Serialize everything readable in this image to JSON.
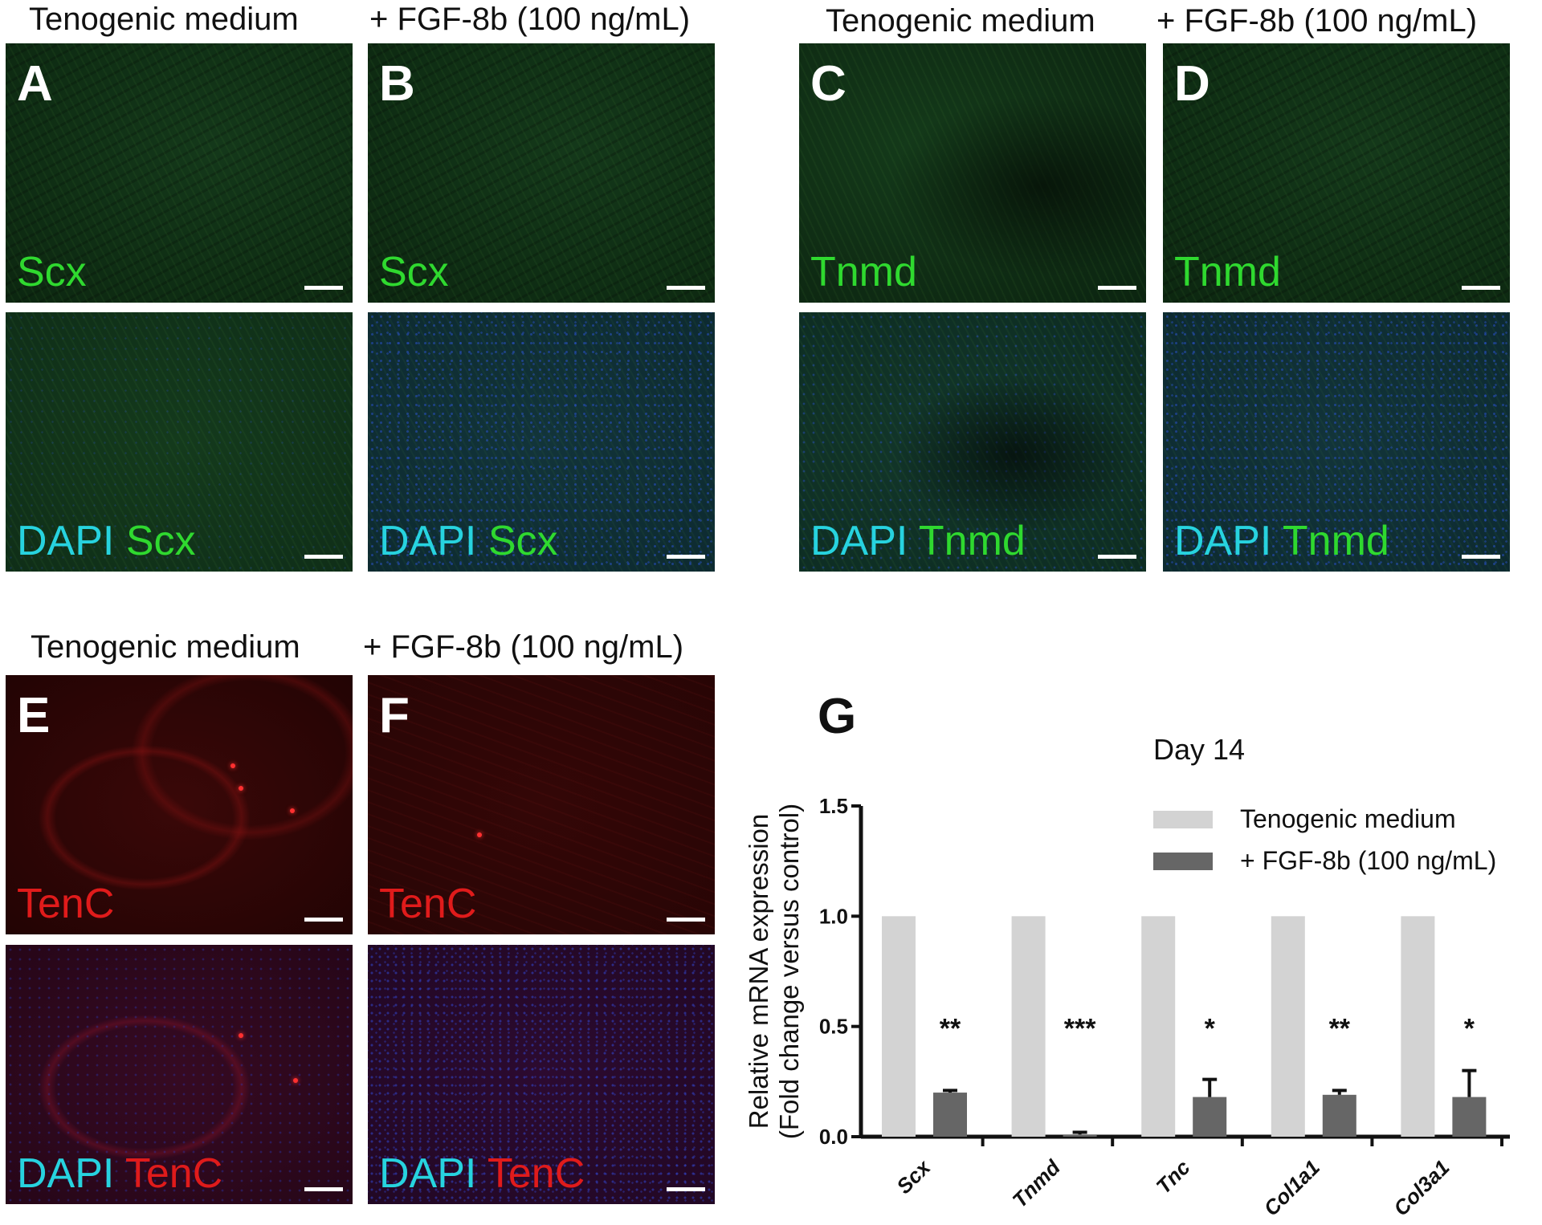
{
  "conditions": {
    "control": "Tenogenic medium",
    "treated": "+ FGF-8b (100 ng/mL)"
  },
  "panels": {
    "A": {
      "letter": "A",
      "stain": [
        "Scx"
      ]
    },
    "B": {
      "letter": "B",
      "stain": [
        "Scx"
      ]
    },
    "C": {
      "letter": "C",
      "stain": [
        "Tnmd"
      ]
    },
    "D": {
      "letter": "D",
      "stain": [
        "Tnmd"
      ]
    },
    "A2": {
      "stain": [
        "DAPI",
        "Scx"
      ]
    },
    "B2": {
      "stain": [
        "DAPI",
        "Scx"
      ]
    },
    "C2": {
      "stain": [
        "DAPI",
        "Tnmd"
      ]
    },
    "D2": {
      "stain": [
        "DAPI",
        "Tnmd"
      ]
    },
    "E": {
      "letter": "E",
      "stain": [
        "TenC"
      ]
    },
    "F": {
      "letter": "F",
      "stain": [
        "TenC"
      ]
    },
    "E2": {
      "stain": [
        "DAPI",
        "TenC"
      ]
    },
    "F2": {
      "stain": [
        "DAPI",
        "TenC"
      ]
    }
  },
  "colors": {
    "green_stain": "#2fd92f",
    "dapi": "#27d3df",
    "red_stain": "#e01b1b",
    "control_bar": "#d3d3d3",
    "treated_bar": "#666666"
  },
  "chart_data": {
    "panel_label": "G",
    "type": "bar",
    "title": "Day 14",
    "ylabel_line1": "Relative mRNA expression",
    "ylabel_line2": "(Fold change versus control)",
    "categories": [
      "Scx",
      "Tnmd",
      "Tnc",
      "Col1a1",
      "Col3a1"
    ],
    "series": [
      {
        "name": "Tenogenic medium",
        "values": [
          1.0,
          1.0,
          1.0,
          1.0,
          1.0
        ],
        "color": "#d3d3d3"
      },
      {
        "name": "+ FGF-8b (100 ng/mL)",
        "values": [
          0.2,
          0.01,
          0.18,
          0.19,
          0.18
        ],
        "errors": [
          0.01,
          0.01,
          0.08,
          0.02,
          0.12
        ],
        "color": "#666666"
      }
    ],
    "significance": [
      "**",
      "***",
      "*",
      "**",
      "*"
    ],
    "ylim": [
      0,
      1.5
    ],
    "yticks": [
      "0.0",
      "0.5",
      "1.0",
      "1.5"
    ],
    "legend_position": "top-right"
  }
}
